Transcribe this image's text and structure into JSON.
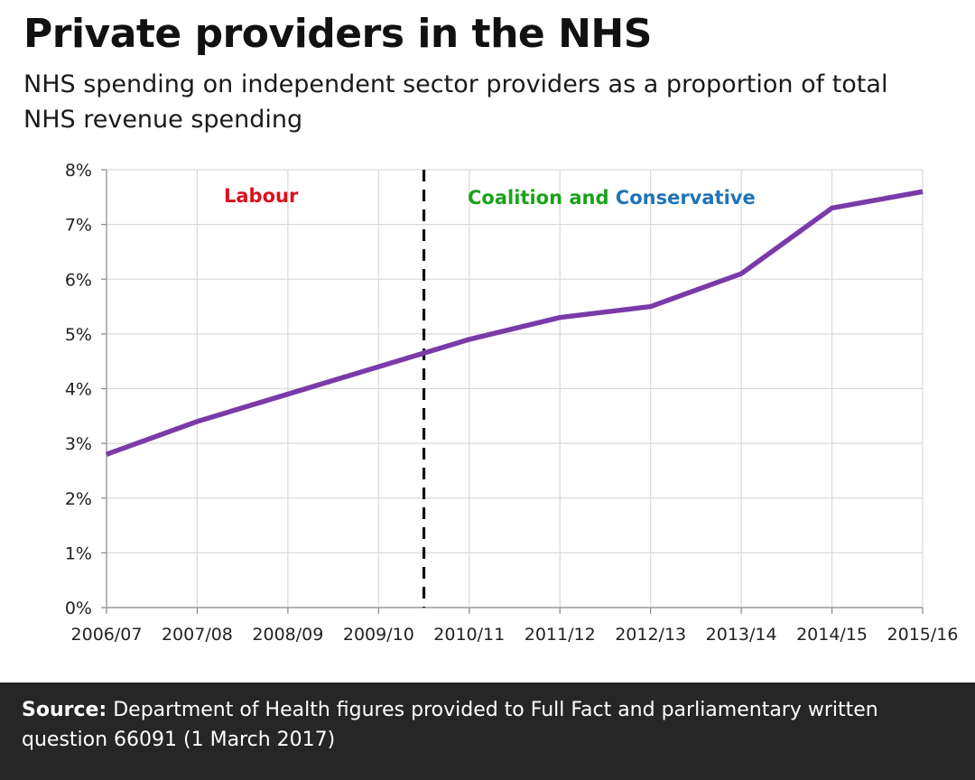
{
  "title": "Private providers in the NHS",
  "subtitle": "NHS spending on independent sector providers as a proportion of total NHS revenue spending",
  "source": {
    "label": "Source:",
    "text": "Department of Health figures provided to Full Fact and parliamentary written question 66091 (1 March 2017)"
  },
  "colors": {
    "line": "#7a3aa8",
    "labour": "#d7141e",
    "coalition": "#1aa31a",
    "conservative": "#1f74b8",
    "grid": "#d9d9d9",
    "footer_bg": "#262626"
  },
  "chart_data": {
    "type": "line",
    "title": "Private providers in the NHS",
    "subtitle": "NHS spending on independent sector providers as a proportion of total NHS revenue spending",
    "xlabel": "",
    "ylabel": "",
    "categories": [
      "2006/07",
      "2007/08",
      "2008/09",
      "2009/10",
      "2010/11",
      "2011/12",
      "2012/13",
      "2013/14",
      "2014/15",
      "2015/16"
    ],
    "series": [
      {
        "values": [
          2.8,
          3.4,
          3.9,
          4.4,
          4.9,
          5.3,
          5.5,
          6.1,
          7.3,
          7.6
        ]
      }
    ],
    "ylim": [
      0,
      8
    ],
    "yticks": [
      0,
      1,
      2,
      3,
      4,
      5,
      6,
      7,
      8
    ],
    "ytick_labels": [
      "0%",
      "1%",
      "2%",
      "3%",
      "4%",
      "5%",
      "6%",
      "7%",
      "8%"
    ],
    "grid": true,
    "vertical_divider": {
      "between": [
        "2009/10",
        "2010/11"
      ],
      "style": "dashed"
    },
    "annotations": [
      {
        "text": "Labour",
        "color": "#d7141e"
      },
      {
        "text_parts": [
          "Coalition and ",
          "Conservative"
        ],
        "colors": [
          "#1aa31a",
          "#1f74b8"
        ]
      }
    ]
  }
}
